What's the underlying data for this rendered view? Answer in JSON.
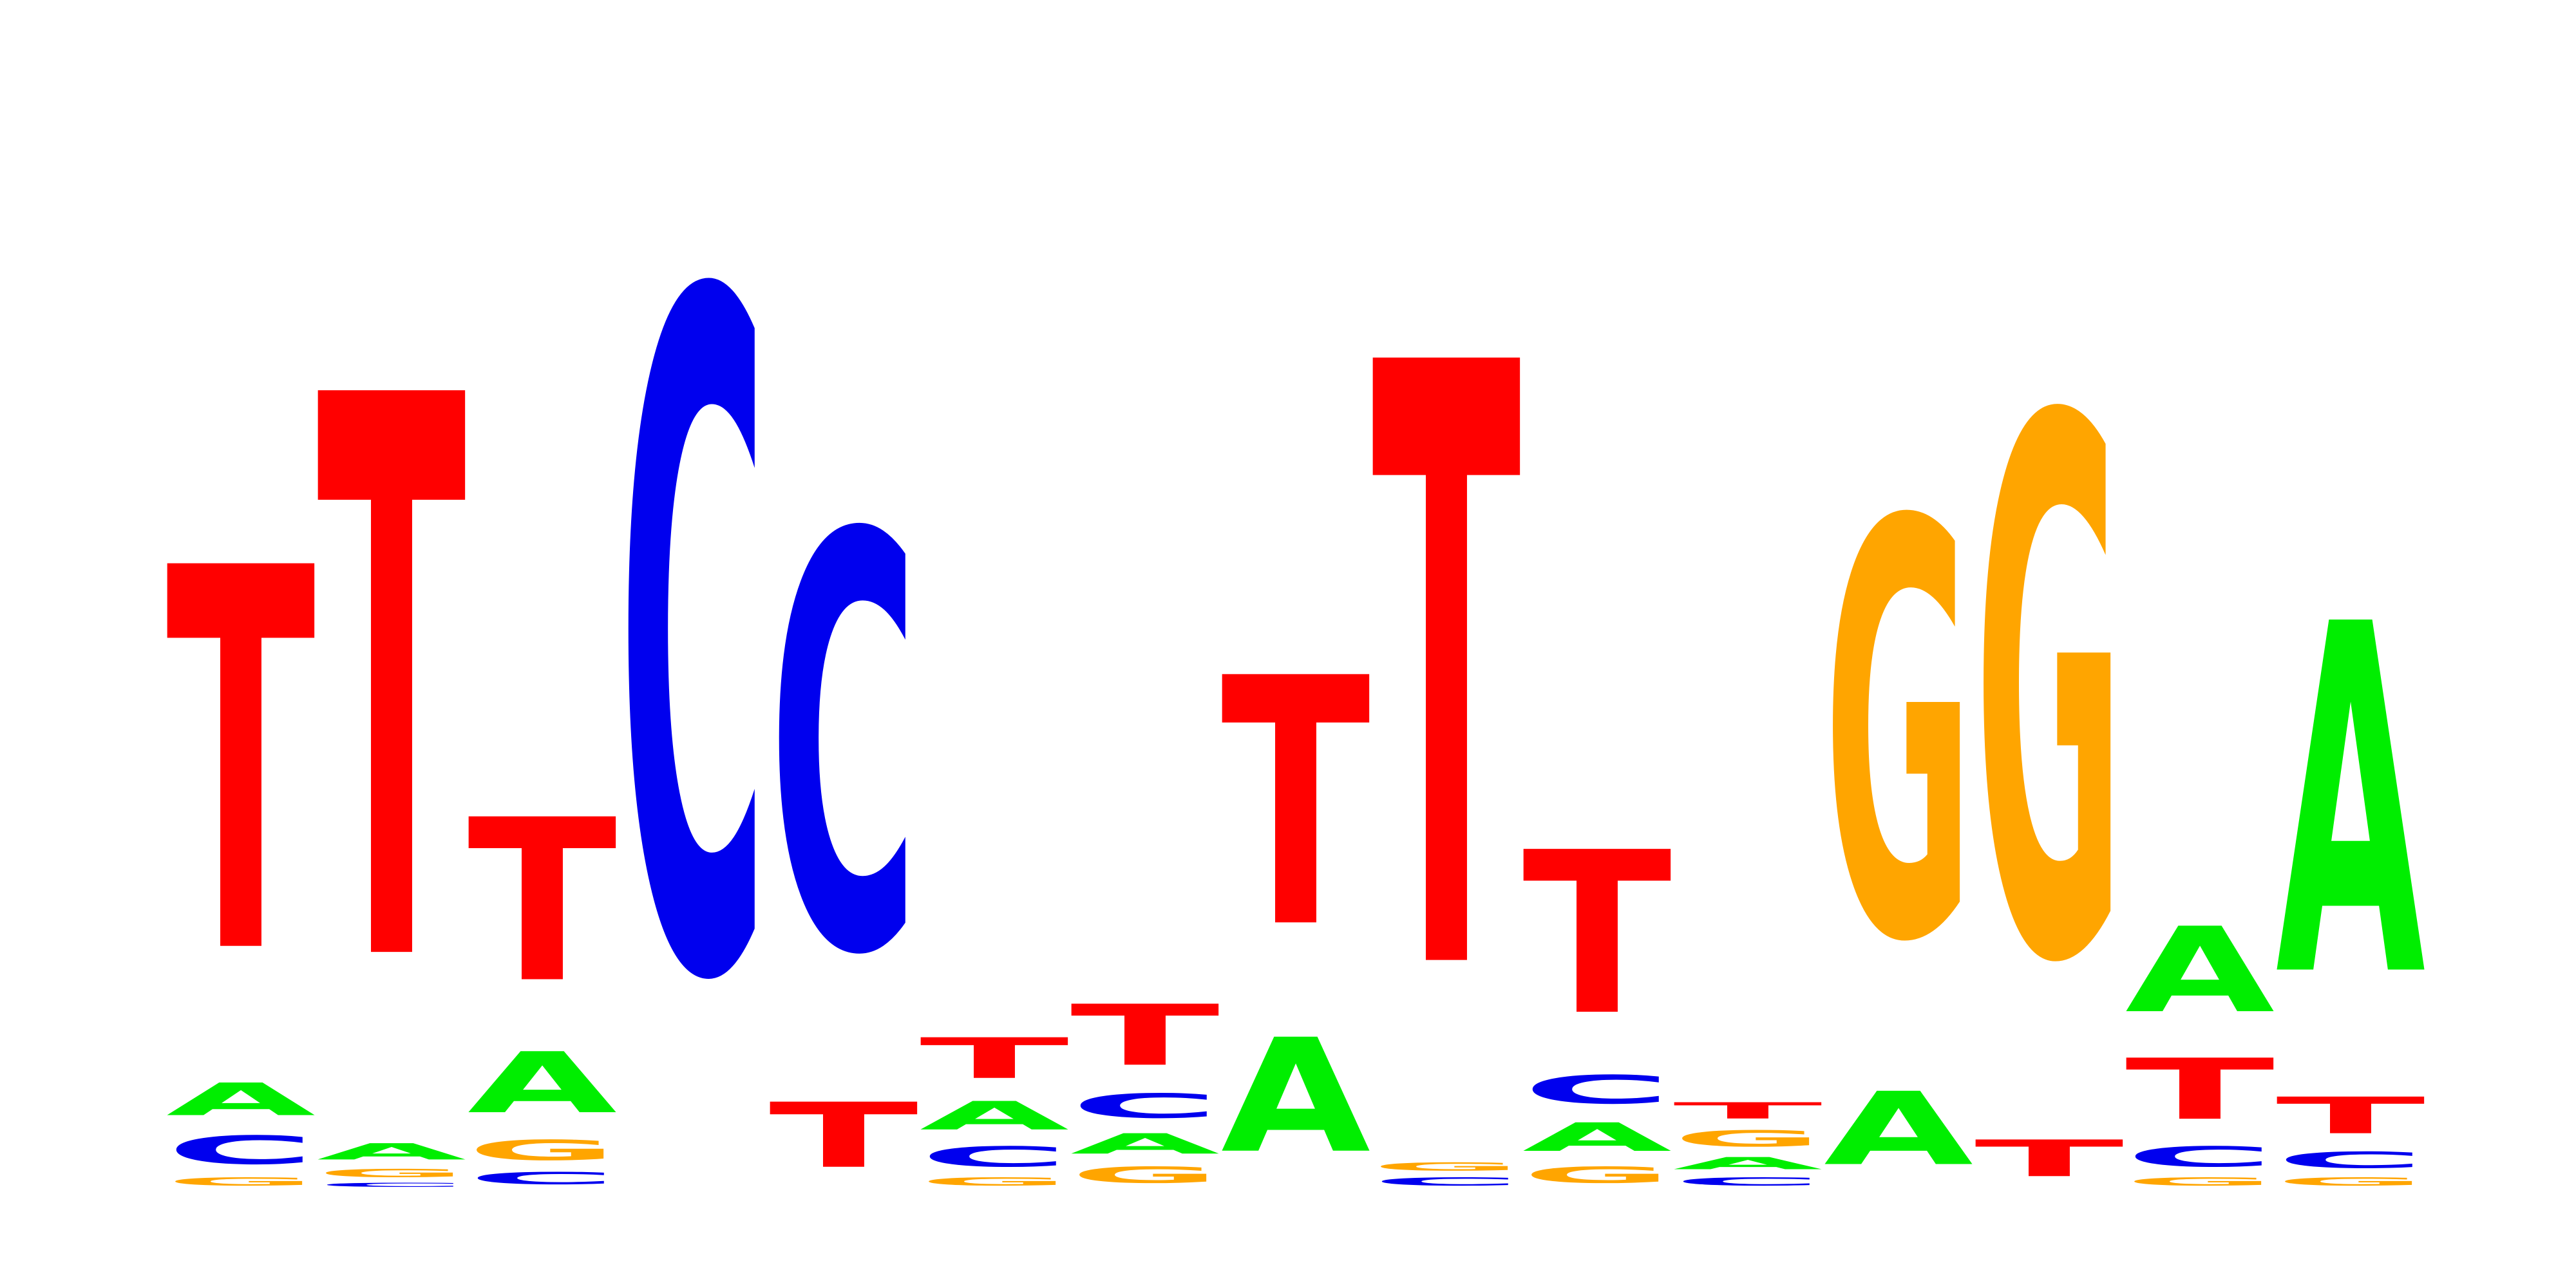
{
  "logo": {
    "alphabet": [
      "A",
      "C",
      "G",
      "T"
    ],
    "colors": {
      "A": "#00ee00",
      "C": "#0000ee",
      "G": "#ffa500",
      "T": "#ff0000"
    },
    "background": "#ffffff",
    "positions": [
      [
        {
          "base": "G",
          "bits": 0.02
        },
        {
          "base": "C",
          "bits": 0.07
        },
        {
          "base": "A",
          "bits": 0.08
        },
        {
          "base": "T",
          "bits": 0.94
        }
      ],
      [
        {
          "base": "C",
          "bits": 0.01
        },
        {
          "base": "G",
          "bits": 0.02
        },
        {
          "base": "A",
          "bits": 0.04
        },
        {
          "base": "T",
          "bits": 1.38
        }
      ],
      [
        {
          "base": "C",
          "bits": 0.03
        },
        {
          "base": "G",
          "bits": 0.05
        },
        {
          "base": "A",
          "bits": 0.15
        },
        {
          "base": "T",
          "bits": 0.4
        }
      ],
      [
        {
          "base": "C",
          "bits": 1.66
        }
      ],
      [
        {
          "base": "T",
          "bits": 0.16
        },
        {
          "base": "C",
          "bits": 1.02
        }
      ],
      [
        {
          "base": "G",
          "bits": 0.02
        },
        {
          "base": "C",
          "bits": 0.05
        },
        {
          "base": "A",
          "bits": 0.07
        },
        {
          "base": "T",
          "bits": 0.1
        }
      ],
      [
        {
          "base": "G",
          "bits": 0.04
        },
        {
          "base": "A",
          "bits": 0.05
        },
        {
          "base": "C",
          "bits": 0.06
        },
        {
          "base": "T",
          "bits": 0.15
        }
      ],
      [
        {
          "base": "A",
          "bits": 0.28
        },
        {
          "base": "T",
          "bits": 0.61
        }
      ],
      [
        {
          "base": "C",
          "bits": 0.02
        },
        {
          "base": "G",
          "bits": 0.02
        },
        {
          "base": "T",
          "bits": 1.48
        }
      ],
      [
        {
          "base": "G",
          "bits": 0.04
        },
        {
          "base": "A",
          "bits": 0.07
        },
        {
          "base": "C",
          "bits": 0.07
        },
        {
          "base": "T",
          "bits": 0.4
        }
      ],
      [
        {
          "base": "C",
          "bits": 0.02
        },
        {
          "base": "A",
          "bits": 0.03
        },
        {
          "base": "G",
          "bits": 0.04
        },
        {
          "base": "T",
          "bits": 0.04
        }
      ],
      [
        {
          "base": "A",
          "bits": 0.18
        },
        {
          "base": "G",
          "bits": 1.02
        }
      ],
      [
        {
          "base": "T",
          "bits": 0.09
        },
        {
          "base": "G",
          "bits": 1.32
        }
      ],
      [
        {
          "base": "G",
          "bits": 0.02
        },
        {
          "base": "C",
          "bits": 0.05
        },
        {
          "base": "T",
          "bits": 0.15
        },
        {
          "base": "A",
          "bits": 0.21
        }
      ],
      [
        {
          "base": "G",
          "bits": 0.02
        },
        {
          "base": "C",
          "bits": 0.04
        },
        {
          "base": "T",
          "bits": 0.09
        },
        {
          "base": "A",
          "bits": 0.86
        }
      ]
    ]
  }
}
